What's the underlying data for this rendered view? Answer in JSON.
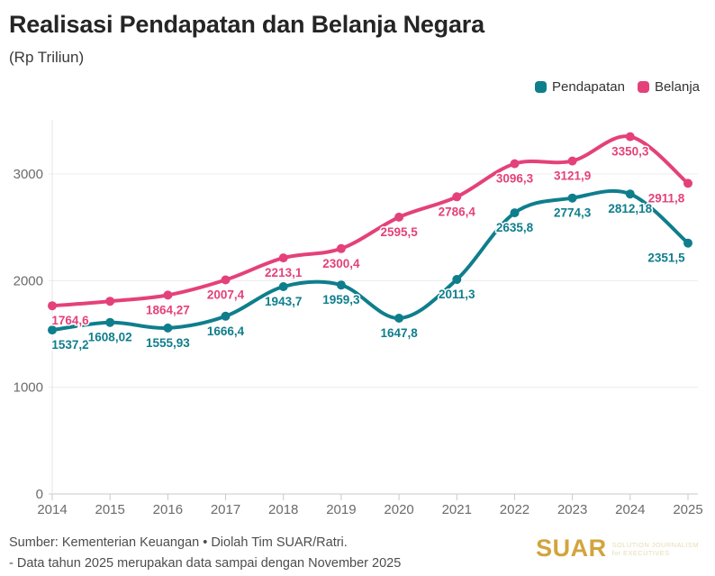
{
  "chart_data": {
    "type": "line",
    "title": "Realisasi Pendapatan dan Belanja Negara",
    "subtitle": "(Rp Triliun)",
    "x": [
      "2014",
      "2015",
      "2016",
      "2017",
      "2018",
      "2019",
      "2020",
      "2021",
      "2022",
      "2023",
      "2024",
      "2025"
    ],
    "series": [
      {
        "name": "Pendapatan",
        "color": "#0f7e8c",
        "values": [
          1537.2,
          1608.02,
          1555.93,
          1666.4,
          1943.7,
          1959.3,
          1647.8,
          2011.3,
          2635.8,
          2774.3,
          2812.18,
          2351.5
        ],
        "labels": [
          "1537,2",
          "1608,02",
          "1555,93",
          "1666,4",
          "1943,7",
          "1959,3",
          "1647,8",
          "2011,3",
          "2635,8",
          "2774,3",
          "2812,18",
          "2351,5"
        ]
      },
      {
        "name": "Belanja",
        "color": "#e4417a",
        "values": [
          1764.6,
          1806.5,
          1864.27,
          2007.4,
          2213.1,
          2300.4,
          2595.5,
          2786.4,
          3096.3,
          3121.9,
          3350.3,
          2911.8
        ],
        "labels": [
          "1764,6",
          "",
          "1864,27",
          "2007,4",
          "2213,1",
          "2300,4",
          "2595,5",
          "2786,4",
          "3096,3",
          "3121,9",
          "3350,3",
          "2911,8"
        ]
      }
    ],
    "xlabel": "",
    "ylabel": "",
    "ylim": [
      0,
      3500
    ],
    "yticks": [
      0,
      1000,
      2000,
      3000
    ],
    "ytick_labels": [
      "0",
      "1000",
      "2000",
      "3000"
    ],
    "grid": "horizontal",
    "legend_position": "top-right"
  },
  "footer": {
    "source": "Sumber: Kementerian Keuangan • Diolah Tim SUAR/Ratri.",
    "note": "- Data tahun 2025 merupakan data sampai dengan November 2025",
    "logo_text": "SUAR",
    "logo_tagline_line1": "SOLUTION JOURNALISM",
    "logo_tagline_line2": "for EXECUTIVES",
    "logo_color": "#d2a43c",
    "logo_tagline_color": "#e7ddb3"
  },
  "colors": {
    "background": "#ffffff",
    "grid_line": "#ececec",
    "axis_line": "#c9c9c9",
    "axis_text": "#6b6b6b"
  }
}
